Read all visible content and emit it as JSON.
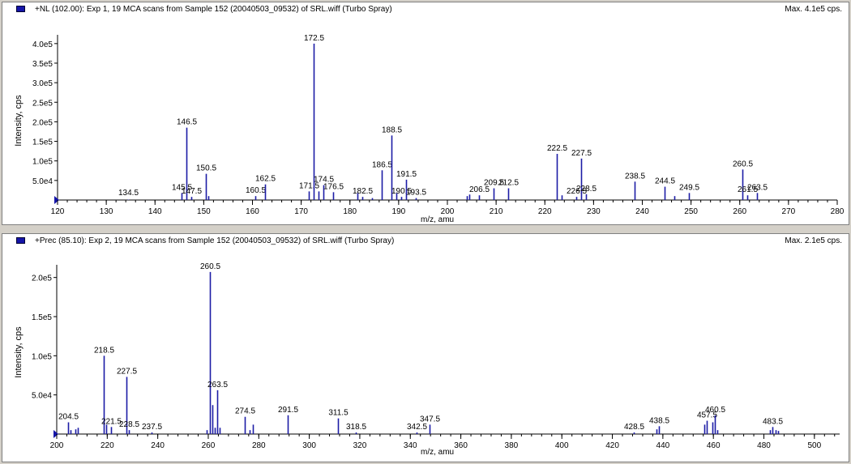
{
  "colors": {
    "peak": "#1c1ca6",
    "axis": "#000000",
    "legend": "#1515a8"
  },
  "panels": [
    {
      "title": "+NL (102.00): Exp 1, 19 MCA scans from Sample 152 (20040503_09532) of SRL.wiff (Turbo Spray)",
      "max_label": "Max. 4.1e5 cps.",
      "ylabel": "Intensity, cps",
      "xlabel": "m/z, amu"
    },
    {
      "title": "+Prec (85.10): Exp 2, 19 MCA scans from Sample 152 (20040503_09532) of SRL.wiff (Turbo Spray)",
      "max_label": "Max. 2.1e5 cps.",
      "ylabel": "Intensity, cps",
      "xlabel": "m/z, amu"
    }
  ],
  "chart_data": [
    {
      "type": "bar",
      "title": "+NL (102.00): Exp 1, 19 MCA scans from Sample 152 (20040503_09532) of SRL.wiff (Turbo Spray)",
      "xlabel": "m/z, amu",
      "ylabel": "Intensity, cps",
      "xlim": [
        120,
        280
      ],
      "ylim": [
        0,
        410000
      ],
      "xticks": [
        "120",
        "130",
        "140",
        "150",
        "160",
        "170",
        "180",
        "190",
        "200",
        "210",
        "220",
        "230",
        "240",
        "250",
        "260",
        "270",
        "280"
      ],
      "yticks": [
        {
          "v": 50000,
          "label": "5.0e4"
        },
        {
          "v": 100000,
          "label": "1.0e5"
        },
        {
          "v": 150000,
          "label": "1.5e5"
        },
        {
          "v": 200000,
          "label": "2.0e5"
        },
        {
          "v": 250000,
          "label": "2.5e5"
        },
        {
          "v": 300000,
          "label": "3.0e5"
        },
        {
          "v": 350000,
          "label": "3.5e5"
        },
        {
          "v": 400000,
          "label": "4.0e5"
        }
      ],
      "peaks": [
        {
          "x": 134.5,
          "y": 1000,
          "label": "134.5"
        },
        {
          "x": 145.5,
          "y": 18000,
          "label": "145.5"
        },
        {
          "x": 146.5,
          "y": 185000,
          "label": "146.5"
        },
        {
          "x": 147.5,
          "y": 8000,
          "label": "147.5"
        },
        {
          "x": 150.5,
          "y": 67000,
          "label": "150.5"
        },
        {
          "x": 151.0,
          "y": 10000
        },
        {
          "x": 160.5,
          "y": 10000,
          "label": "160.5"
        },
        {
          "x": 162.5,
          "y": 40000,
          "label": "162.5"
        },
        {
          "x": 171.5,
          "y": 22000,
          "label": "171.5"
        },
        {
          "x": 172.5,
          "y": 400000,
          "label": "172.5"
        },
        {
          "x": 173.5,
          "y": 22000
        },
        {
          "x": 174.5,
          "y": 38000,
          "label": "174.5"
        },
        {
          "x": 176.5,
          "y": 20000,
          "label": "176.5"
        },
        {
          "x": 181.5,
          "y": 18000
        },
        {
          "x": 182.5,
          "y": 8000,
          "label": "182.5"
        },
        {
          "x": 184.5,
          "y": 5000
        },
        {
          "x": 186.5,
          "y": 76000,
          "label": "186.5"
        },
        {
          "x": 188.5,
          "y": 165000,
          "label": "188.5"
        },
        {
          "x": 189.5,
          "y": 18000
        },
        {
          "x": 190.5,
          "y": 8000,
          "label": "190.5"
        },
        {
          "x": 191.5,
          "y": 52000,
          "label": "191.5"
        },
        {
          "x": 193.5,
          "y": 5000,
          "label": "193.5"
        },
        {
          "x": 204.0,
          "y": 10000
        },
        {
          "x": 204.5,
          "y": 14000
        },
        {
          "x": 206.5,
          "y": 12000,
          "label": "206.5"
        },
        {
          "x": 209.5,
          "y": 30000,
          "label": "209.5"
        },
        {
          "x": 212.5,
          "y": 30000,
          "label": "212.5"
        },
        {
          "x": 222.5,
          "y": 118000,
          "label": "222.5"
        },
        {
          "x": 223.5,
          "y": 12000
        },
        {
          "x": 226.5,
          "y": 8000,
          "label": "226.5"
        },
        {
          "x": 227.5,
          "y": 106000,
          "label": "227.5"
        },
        {
          "x": 228.5,
          "y": 15000,
          "label": "228.5"
        },
        {
          "x": 238.5,
          "y": 47000,
          "label": "238.5"
        },
        {
          "x": 244.5,
          "y": 34000,
          "label": "244.5"
        },
        {
          "x": 246.5,
          "y": 10000
        },
        {
          "x": 249.5,
          "y": 18000,
          "label": "249.5"
        },
        {
          "x": 260.5,
          "y": 78000,
          "label": "260.5"
        },
        {
          "x": 261.5,
          "y": 12000,
          "label": "261.5"
        },
        {
          "x": 263.5,
          "y": 18000,
          "label": "263.5"
        }
      ]
    },
    {
      "type": "bar",
      "title": "+Prec (85.10): Exp 2, 19 MCA scans from Sample 152 (20040503_09532) of SRL.wiff (Turbo Spray)",
      "xlabel": "m/z, amu",
      "ylabel": "Intensity, cps",
      "xlim": [
        200,
        510
      ],
      "ylim": [
        0,
        210000
      ],
      "xticks": [
        "200",
        "220",
        "240",
        "260",
        "280",
        "300",
        "320",
        "340",
        "360",
        "380",
        "400",
        "420",
        "440",
        "460",
        "480",
        "500"
      ],
      "yticks": [
        {
          "v": 50000,
          "label": "5.0e4"
        },
        {
          "v": 100000,
          "label": "1.0e5"
        },
        {
          "v": 150000,
          "label": "1.5e5"
        },
        {
          "v": 200000,
          "label": "2.0e5"
        }
      ],
      "peaks": [
        {
          "x": 204.5,
          "y": 15000,
          "label": "204.5"
        },
        {
          "x": 205.5,
          "y": 5000
        },
        {
          "x": 207.5,
          "y": 6000
        },
        {
          "x": 208.5,
          "y": 8000
        },
        {
          "x": 218.5,
          "y": 100000,
          "label": "218.5"
        },
        {
          "x": 219.5,
          "y": 12000
        },
        {
          "x": 221.5,
          "y": 9000,
          "label": "221.5"
        },
        {
          "x": 227.5,
          "y": 73000,
          "label": "227.5"
        },
        {
          "x": 228.5,
          "y": 5000,
          "label": "228.5"
        },
        {
          "x": 237.5,
          "y": 2000,
          "label": "237.5"
        },
        {
          "x": 259.5,
          "y": 5000
        },
        {
          "x": 260.5,
          "y": 207000,
          "label": "260.5"
        },
        {
          "x": 261.5,
          "y": 37000
        },
        {
          "x": 262.5,
          "y": 8000
        },
        {
          "x": 263.5,
          "y": 56000,
          "label": "263.5"
        },
        {
          "x": 264.5,
          "y": 8000
        },
        {
          "x": 274.5,
          "y": 22000,
          "label": "274.5"
        },
        {
          "x": 276.5,
          "y": 5000
        },
        {
          "x": 277.5,
          "y": 12000
        },
        {
          "x": 291.5,
          "y": 24000,
          "label": "291.5"
        },
        {
          "x": 311.5,
          "y": 20000,
          "label": "311.5"
        },
        {
          "x": 318.5,
          "y": 2000,
          "label": "318.5"
        },
        {
          "x": 342.5,
          "y": 2000,
          "label": "342.5"
        },
        {
          "x": 347.5,
          "y": 12000,
          "label": "347.5"
        },
        {
          "x": 428.5,
          "y": 2000,
          "label": "428.5"
        },
        {
          "x": 437.5,
          "y": 6000
        },
        {
          "x": 438.5,
          "y": 10000,
          "label": "438.5"
        },
        {
          "x": 456.5,
          "y": 12000
        },
        {
          "x": 457.5,
          "y": 17000,
          "label": "457.5"
        },
        {
          "x": 459.5,
          "y": 15000
        },
        {
          "x": 460.5,
          "y": 24000,
          "label": "460.5"
        },
        {
          "x": 461.5,
          "y": 5000
        },
        {
          "x": 482.5,
          "y": 5000
        },
        {
          "x": 483.5,
          "y": 9000,
          "label": "483.5"
        },
        {
          "x": 484.5,
          "y": 5000
        },
        {
          "x": 485.5,
          "y": 4000
        }
      ]
    }
  ]
}
